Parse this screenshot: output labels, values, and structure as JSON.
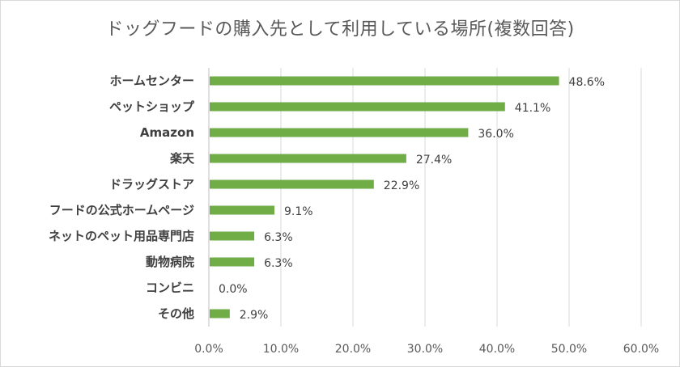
{
  "chart_data": {
    "type": "bar",
    "orientation": "horizontal",
    "title": "ドッグフードの購入先として利用している場所(複数回答)",
    "categories": [
      "ホームセンター",
      "ペットショップ",
      "Amazon",
      "楽天",
      "ドラッグストア",
      "フードの公式ホームページ",
      "ネットのペット用品専門店",
      "動物病院",
      "コンビニ",
      "その他"
    ],
    "values": [
      48.6,
      41.1,
      36.0,
      27.4,
      22.9,
      9.1,
      6.3,
      6.3,
      0.0,
      2.9
    ],
    "data_labels": [
      "48.6%",
      "41.1%",
      "36.0%",
      "27.4%",
      "22.9%",
      "9.1%",
      "6.3%",
      "6.3%",
      "0.0%",
      "2.9%"
    ],
    "xlim": [
      0,
      60
    ],
    "x_ticks": [
      "0.0%",
      "10.0%",
      "20.0%",
      "30.0%",
      "40.0%",
      "50.0%",
      "60.0%"
    ],
    "grid": "vertical",
    "legend": "none",
    "bar_color": "#70ad47",
    "grid_color": "#d9d9d9"
  }
}
